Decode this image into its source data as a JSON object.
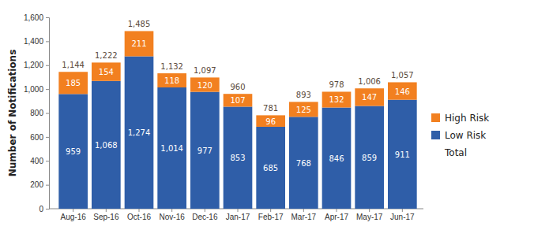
{
  "chart_data": {
    "type": "bar",
    "stacked": true,
    "data_labels": true,
    "grid": false,
    "legend": "right",
    "y_label": "Number of Notifications",
    "categories": [
      "Aug-16",
      "Sep-16",
      "Oct-16",
      "Nov-16",
      "Dec-16",
      "Jan-17",
      "Feb-17",
      "Mar-17",
      "Apr-17",
      "May-17",
      "Jun-17"
    ],
    "series": [
      {
        "name": "Low Risk",
        "color": "#2f5ea8",
        "values": [
          959,
          1068,
          1274,
          1014,
          977,
          853,
          685,
          768,
          846,
          859,
          911
        ],
        "value_labels": [
          "959",
          "1,068",
          "1,274",
          "1,014",
          "977",
          "853",
          "685",
          "768",
          "846",
          "859",
          "911"
        ]
      },
      {
        "name": "High Risk",
        "color": "#f28020",
        "values": [
          185,
          154,
          211,
          118,
          120,
          107,
          96,
          125,
          132,
          147,
          146
        ]
      },
      {
        "name": "Total",
        "type": "text",
        "color": "#5a4a3c",
        "values": [
          1144,
          1222,
          1485,
          1132,
          1097,
          960,
          781,
          893,
          978,
          1006,
          1057
        ],
        "value_labels": [
          "1,144",
          "1,222",
          "1,485",
          "1,132",
          "1,097",
          "960",
          "781",
          "893",
          "978",
          "1,006",
          "1,057"
        ]
      }
    ],
    "ylim": [
      0,
      1600
    ],
    "yticks": [
      0,
      200,
      400,
      600,
      800,
      {
        "value": 1000,
        "label": "1,000"
      },
      {
        "value": 1200,
        "label": "1,200"
      },
      {
        "value": 1400,
        "label": "1,400"
      },
      {
        "value": 1600,
        "label": "1,600"
      }
    ]
  }
}
